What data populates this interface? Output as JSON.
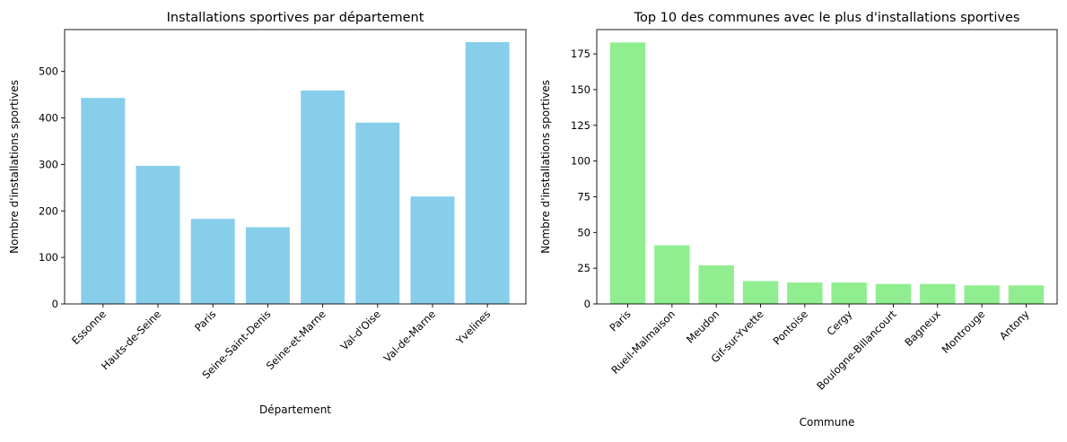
{
  "chart_data": [
    {
      "type": "bar",
      "title": "Installations sportives par département",
      "xlabel": "Département",
      "ylabel": "Nombre d'installations sportives",
      "categories": [
        "Essonne",
        "Hauts-de-Seine",
        "Paris",
        "Seine-Saint-Denis",
        "Seine-et-Marne",
        "Val-d'Oise",
        "Val-de-Marne",
        "Yvelines"
      ],
      "values": [
        443,
        297,
        183,
        165,
        459,
        390,
        231,
        563
      ],
      "ylim": [
        0,
        590
      ],
      "yticks": [
        0,
        100,
        200,
        300,
        400,
        500
      ],
      "color": "#87ceeb",
      "grid": false
    },
    {
      "type": "bar",
      "title": "Top 10 des communes avec le plus d'installations sportives",
      "xlabel": "Commune",
      "ylabel": "Nombre d'installations sportives",
      "categories": [
        "Paris",
        "Rueil-Malmaison",
        "Meudon",
        "Gif-sur-Yvette",
        "Pontoise",
        "Cergy",
        "Boulogne-Billancourt",
        "Bagneux",
        "Montrouge",
        "Antony"
      ],
      "values": [
        183,
        41,
        27,
        16,
        15,
        15,
        14,
        14,
        13,
        13
      ],
      "ylim": [
        0,
        192
      ],
      "yticks": [
        0,
        25,
        50,
        75,
        100,
        125,
        150,
        175
      ],
      "color": "#90ee90",
      "grid": false
    }
  ]
}
